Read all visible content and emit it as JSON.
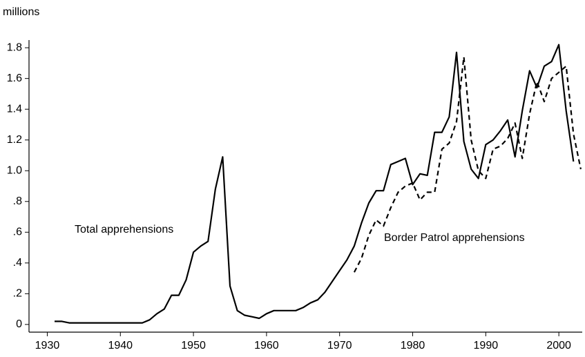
{
  "chart_data": {
    "type": "line",
    "y_label": "millions",
    "annotations": [
      "Total apprehensions",
      "Border Patrol apprehensions"
    ],
    "xlim": [
      1927.5,
      2003.2
    ],
    "ylim": [
      -0.05,
      1.85
    ],
    "xticks": [
      1930,
      1940,
      1950,
      1960,
      1970,
      1980,
      1990,
      2000
    ],
    "yticks": [
      0,
      {
        "value": 0.2,
        "label": ".2"
      },
      {
        "value": 0.4,
        "label": ".4"
      },
      {
        "value": 0.6,
        "label": ".6"
      },
      {
        "value": 0.8,
        "label": ".8"
      },
      {
        "value": 1.0,
        "label": "1.0"
      },
      1.2,
      1.4,
      1.6,
      1.8
    ],
    "series": [
      {
        "color": "#000000",
        "dashed": false,
        "x": [
          1931,
          1932,
          1933,
          1934,
          1935,
          1936,
          1937,
          1938,
          1939,
          1940,
          1941,
          1942,
          1943,
          1944,
          1945,
          1946,
          1947,
          1948,
          1949,
          1950,
          1951,
          1952,
          1953,
          1954,
          1955,
          1956,
          1957,
          1958,
          1959,
          1960,
          1961,
          1962,
          1963,
          1964,
          1965,
          1966,
          1967,
          1968,
          1969,
          1970,
          1971,
          1972,
          1973,
          1974,
          1975,
          1976,
          1977,
          1978,
          1979,
          1980,
          1981,
          1982,
          1983,
          1984,
          1985,
          1986,
          1987,
          1988,
          1989,
          1990,
          1991,
          1992,
          1993,
          1994,
          1995,
          1996,
          1997,
          1998,
          1999,
          2000,
          2001,
          2002
        ],
        "values": [
          0.02,
          0.02,
          0.01,
          0.01,
          0.01,
          0.01,
          0.01,
          0.01,
          0.01,
          0.01,
          0.01,
          0.01,
          0.01,
          0.03,
          0.07,
          0.1,
          0.19,
          0.19,
          0.29,
          0.47,
          0.51,
          0.54,
          0.88,
          1.09,
          0.25,
          0.09,
          0.06,
          0.05,
          0.04,
          0.07,
          0.09,
          0.09,
          0.09,
          0.09,
          0.11,
          0.14,
          0.16,
          0.21,
          0.28,
          0.35,
          0.42,
          0.51,
          0.66,
          0.79,
          0.87,
          0.87,
          1.04,
          1.06,
          1.08,
          0.91,
          0.98,
          0.97,
          1.25,
          1.25,
          1.35,
          1.77,
          1.19,
          1.01,
          0.95,
          1.17,
          1.2,
          1.26,
          1.33,
          1.09,
          1.39,
          1.65,
          1.54,
          1.68,
          1.71,
          1.82,
          1.39,
          1.06
        ]
      },
      {
        "color": "#000000",
        "dashed": true,
        "x": [
          1972,
          1973,
          1974,
          1975,
          1976,
          1977,
          1978,
          1979,
          1980,
          1981,
          1982,
          1983,
          1984,
          1985,
          1986,
          1987,
          1988,
          1989,
          1990,
          1991,
          1992,
          1993,
          1994,
          1995,
          1996,
          1997,
          1998,
          1999,
          2000,
          2001,
          2002,
          2003
        ],
        "values": [
          0.34,
          0.43,
          0.58,
          0.68,
          0.64,
          0.76,
          0.86,
          0.9,
          0.92,
          0.81,
          0.86,
          0.86,
          1.14,
          1.18,
          1.32,
          1.74,
          1.2,
          1.0,
          0.95,
          1.14,
          1.16,
          1.21,
          1.31,
          1.08,
          1.37,
          1.58,
          1.45,
          1.6,
          1.64,
          1.68,
          1.24,
          1.01
        ]
      }
    ]
  }
}
